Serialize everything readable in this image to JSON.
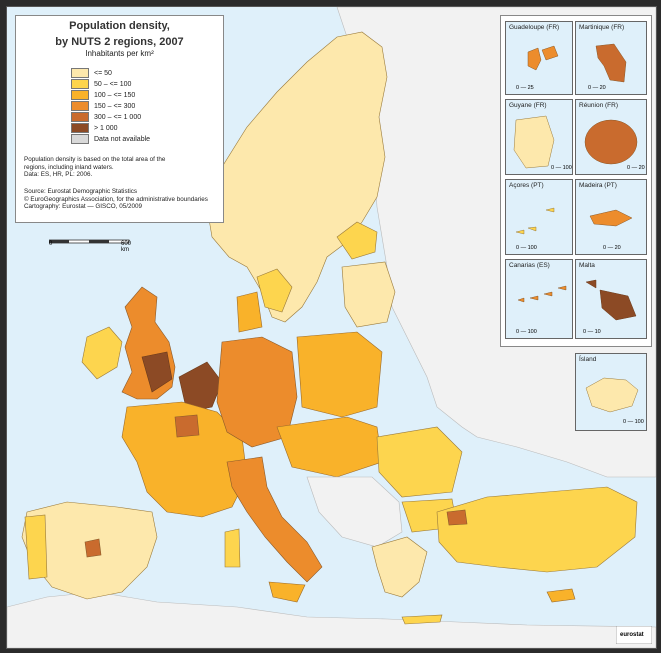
{
  "title_line1": "Population density,",
  "title_line2": "by NUTS 2 regions, 2007",
  "units": "Inhabitants per km²",
  "legend": [
    {
      "label": "<= 50",
      "color": "#fde8ac"
    },
    {
      "label": "50 – <= 100",
      "color": "#fdd54e"
    },
    {
      "label": "100 – <= 150",
      "color": "#f9b22a"
    },
    {
      "label": "150 – <= 300",
      "color": "#ec8c2c"
    },
    {
      "label": "300 – <= 1 000",
      "color": "#c96b2e"
    },
    {
      "label": "> 1 000",
      "color": "#8c4a25"
    },
    {
      "label": "Data not available",
      "color": "#d9d9d9"
    }
  ],
  "note_line1": "Population density is based on the total area of the",
  "note_line2": "regions, including inland waters.",
  "note_line3": "Data: ES, HR, PL: 2006.",
  "source_line1": "Source: Eurostat Demographic Statistics",
  "source_line2": "© EuroGeographics Association, for the administrative boundaries",
  "source_line3": "Cartography: Eurostat — GISCO, 05/2009",
  "scale_start": "0",
  "scale_end": "600 km",
  "insets": {
    "guadeloupe": "Guadeloupe (FR)",
    "martinique": "Martinique (FR)",
    "guyane": "Guyane (FR)",
    "reunion": "Réunion (FR)",
    "acores": "Açores (PT)",
    "madeira": "Madeira (PT)",
    "canarias": "Canarias (ES)",
    "malta": "Malta",
    "island": "Ísland"
  },
  "inset_scales": {
    "guadeloupe": [
      "0",
      "25"
    ],
    "martinique": [
      "0",
      "20"
    ],
    "guyane": [
      "0",
      "100"
    ],
    "reunion": [
      "0",
      "20"
    ],
    "acores": [
      "0",
      "100"
    ],
    "madeira": [
      "0",
      "20"
    ],
    "canarias": [
      "0",
      "100"
    ],
    "malta": [
      "0",
      "10"
    ],
    "island": [
      "0",
      "100"
    ]
  },
  "logo": "eurostat"
}
